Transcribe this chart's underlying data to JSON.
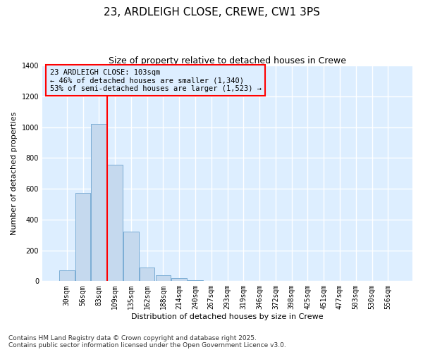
{
  "title": "23, ARDLEIGH CLOSE, CREWE, CW1 3PS",
  "subtitle": "Size of property relative to detached houses in Crewe",
  "xlabel": "Distribution of detached houses by size in Crewe",
  "ylabel": "Number of detached properties",
  "bar_labels": [
    "30sqm",
    "56sqm",
    "83sqm",
    "109sqm",
    "135sqm",
    "162sqm",
    "188sqm",
    "214sqm",
    "240sqm",
    "267sqm",
    "293sqm",
    "319sqm",
    "346sqm",
    "372sqm",
    "398sqm",
    "425sqm",
    "451sqm",
    "477sqm",
    "503sqm",
    "530sqm",
    "556sqm"
  ],
  "bar_values": [
    70,
    575,
    1020,
    755,
    320,
    90,
    40,
    20,
    8,
    0,
    0,
    0,
    0,
    0,
    0,
    0,
    0,
    0,
    0,
    0,
    0
  ],
  "bar_color": "#c5d9ee",
  "bar_edge_color": "#7badd4",
  "vline_color": "red",
  "vline_pos": 2.5,
  "ylim": [
    0,
    1400
  ],
  "yticks": [
    0,
    200,
    400,
    600,
    800,
    1000,
    1200,
    1400
  ],
  "annotation_text": "23 ARDLEIGH CLOSE: 103sqm\n← 46% of detached houses are smaller (1,340)\n53% of semi-detached houses are larger (1,523) →",
  "footer_text": "Contains HM Land Registry data © Crown copyright and database right 2025.\nContains public sector information licensed under the Open Government Licence v3.0.",
  "fig_bg_color": "#ffffff",
  "plot_bg_color": "#ddeeff",
  "grid_color": "#ffffff",
  "title_fontsize": 11,
  "subtitle_fontsize": 9,
  "axis_label_fontsize": 8,
  "tick_fontsize": 7,
  "annotation_fontsize": 7.5,
  "footer_fontsize": 6.5
}
